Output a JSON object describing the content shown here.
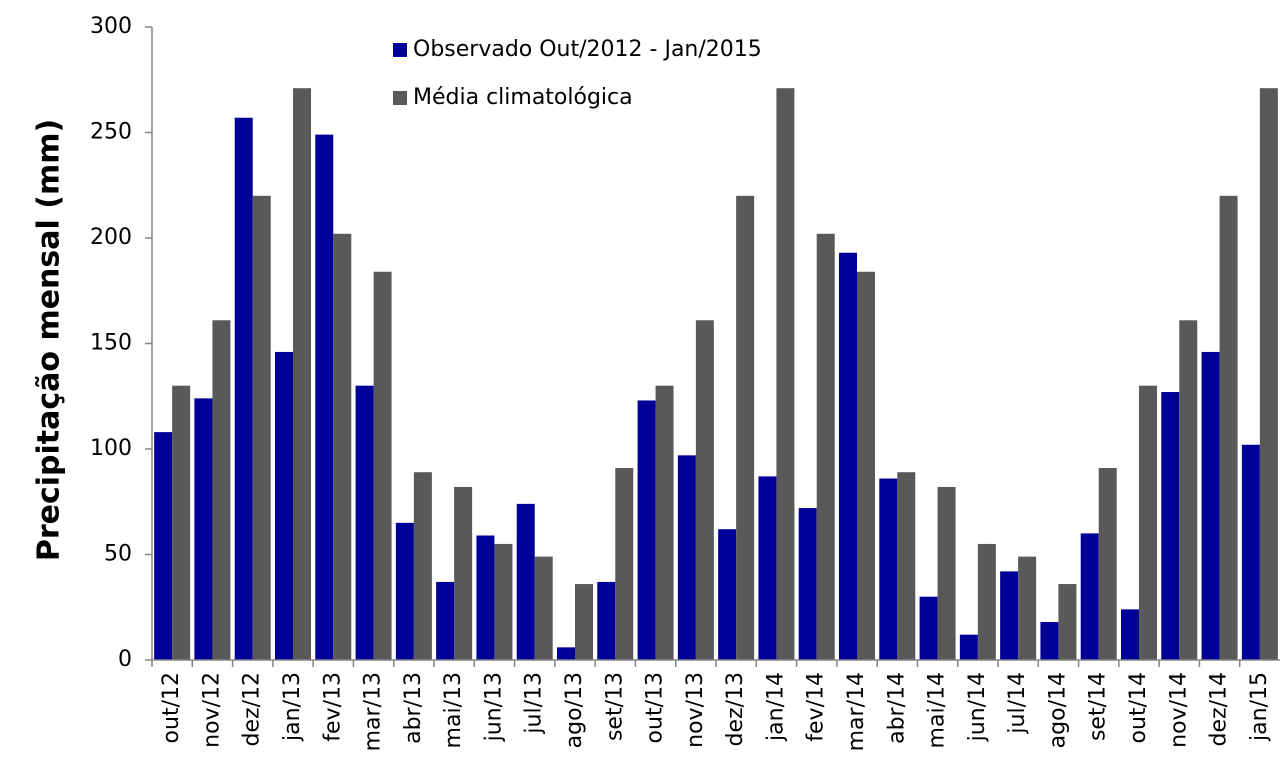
{
  "chart_data": {
    "type": "bar",
    "y_label": "Precipitação mensal (mm)",
    "categories": [
      "out/12",
      "nov/12",
      "dez/12",
      "jan/13",
      "fev/13",
      "mar/13",
      "abr/13",
      "mai/13",
      "jun/13",
      "jul/13",
      "ago/13",
      "set/13",
      "out/13",
      "nov/13",
      "dez/13",
      "jan/14",
      "fev/14",
      "mar/14",
      "abr/14",
      "mai/14",
      "jun/14",
      "jul/14",
      "ago/14",
      "set/14",
      "out/14",
      "nov/14",
      "dez/14",
      "jan/15"
    ],
    "series": [
      {
        "name": "Observado Out/2012 - Jan/2015",
        "color": "#000099",
        "values": [
          108,
          124,
          257,
          146,
          249,
          130,
          65,
          37,
          59,
          74,
          6,
          37,
          123,
          97,
          62,
          87,
          72,
          193,
          86,
          30,
          12,
          42,
          18,
          60,
          24,
          127,
          146,
          102
        ]
      },
      {
        "name": "Média climatológica",
        "color": "#595959",
        "values": [
          130,
          161,
          220,
          271,
          202,
          184,
          89,
          82,
          55,
          49,
          36,
          91,
          130,
          161,
          220,
          271,
          202,
          184,
          89,
          82,
          55,
          49,
          36,
          91,
          130,
          161,
          220,
          271
        ]
      }
    ],
    "ylim": [
      0,
      300
    ],
    "yticks": [
      0,
      50,
      100,
      150,
      200,
      250,
      300
    ],
    "grid": false
  }
}
